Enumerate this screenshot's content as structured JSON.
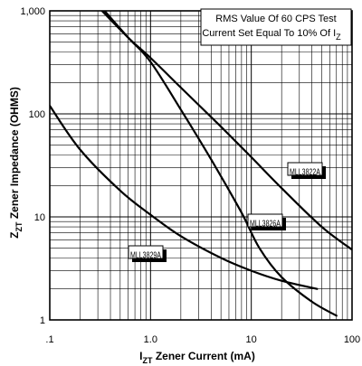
{
  "chart_data": {
    "type": "line",
    "x_scale": "log",
    "y_scale": "log",
    "xlim": [
      0.1,
      100
    ],
    "ylim": [
      1,
      1000
    ],
    "grid": true,
    "x_tick_labels": [
      ".1",
      "1.0",
      "10",
      "100"
    ],
    "y_tick_labels": [
      "1",
      "10",
      "100",
      "1,000"
    ],
    "ylabel": {
      "main": "Z",
      "sub": "ZT",
      "rest": " Zener Impedance (OHMS)"
    },
    "xlabel": {
      "main": "I",
      "sub": "ZT",
      "rest": " Zener Current  (mA)"
    },
    "note": {
      "line1": "RMS Value Of 60 CPS Test",
      "line2_main": "Current Set Equal To 10% Of I",
      "line2_sub": "Z"
    },
    "series": [
      {
        "name": "MLL3822A",
        "x": [
          0.3,
          0.6,
          1,
          2,
          5,
          10,
          20,
          50,
          100
        ],
        "y": [
          1100,
          550,
          350,
          180,
          75,
          38,
          19,
          8,
          4.8
        ]
      },
      {
        "name": "MLL3826A",
        "x": [
          0.35,
          0.6,
          1,
          2,
          4,
          8,
          12,
          20,
          40,
          70
        ],
        "y": [
          1000,
          550,
          320,
          110,
          36,
          11,
          5,
          2.6,
          1.5,
          1.1
        ]
      },
      {
        "name": "MLL3829A",
        "x": [
          0.1,
          0.2,
          0.5,
          1,
          2,
          5,
          10,
          20,
          45
        ],
        "y": [
          120,
          45,
          18,
          10.5,
          6.5,
          4,
          3,
          2.4,
          2
        ]
      }
    ]
  }
}
